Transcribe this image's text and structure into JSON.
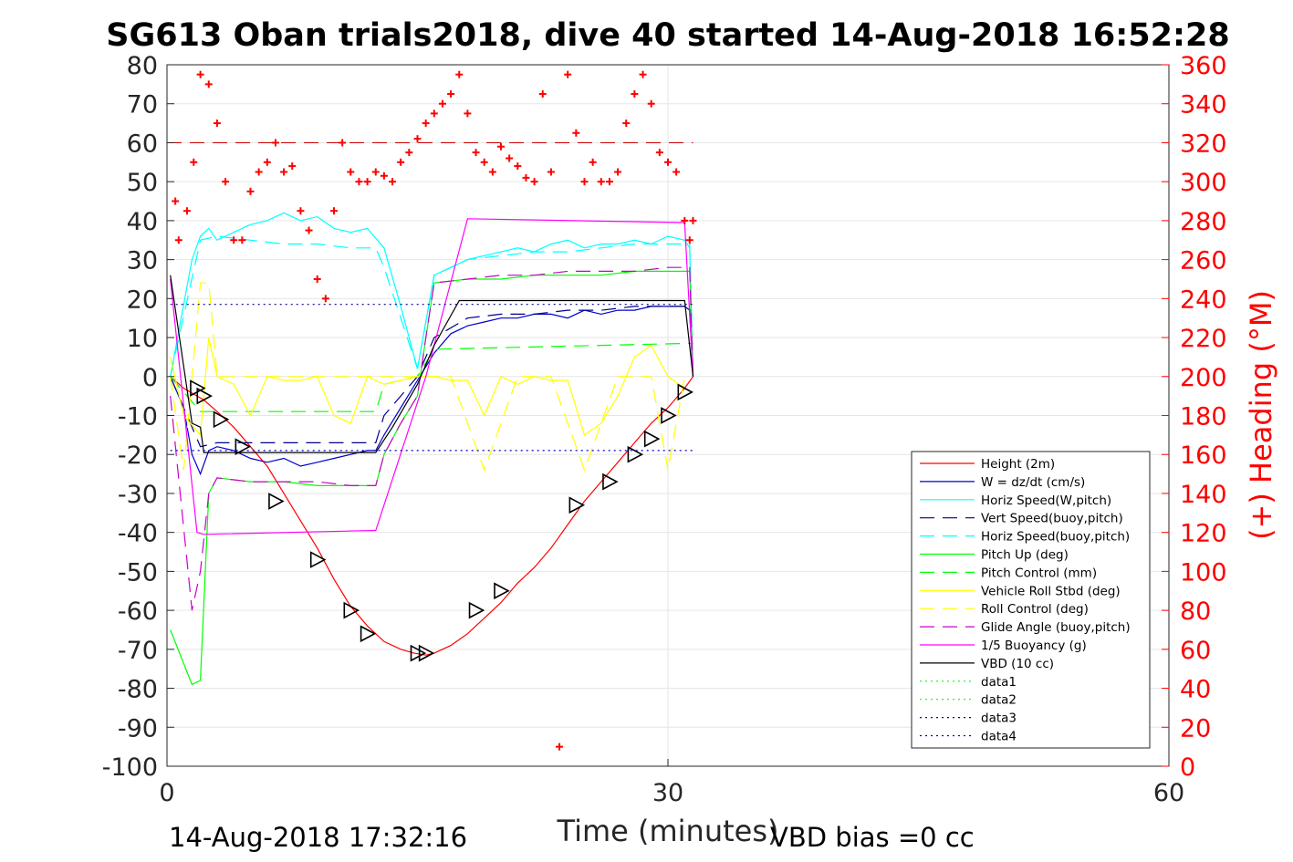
{
  "title": "SG613 Oban trials2018, dive 40 started 14-Aug-2018 16:52:28",
  "footer_left": "14-Aug-2018 17:32:16",
  "footer_right": "VBD bias =0 cc",
  "chart_data": {
    "type": "line",
    "xlabel": "Time (minutes)",
    "ylabel": "",
    "ylabel_right": "(+) Heading (°M)",
    "xlim": [
      0,
      60
    ],
    "ylim": [
      -100,
      80
    ],
    "ylim_right": [
      0,
      360
    ],
    "xticks": [
      0,
      30,
      60
    ],
    "yticks": [
      -100,
      -90,
      -80,
      -70,
      -60,
      -50,
      -40,
      -30,
      -20,
      -10,
      0,
      10,
      20,
      30,
      40,
      50,
      60,
      70,
      80
    ],
    "yticks_right": [
      0,
      20,
      40,
      60,
      80,
      100,
      120,
      140,
      160,
      180,
      200,
      220,
      240,
      260,
      280,
      300,
      320,
      340,
      360
    ],
    "grid": true,
    "legend_position": "lower-right",
    "series": [
      {
        "name": "Height (2m)",
        "color": "#ff0000",
        "style": "solid",
        "x": [
          0.2,
          1.0,
          1.8,
          2.2,
          3,
          4,
          5,
          6,
          7,
          8,
          9,
          10,
          11,
          12,
          13,
          14,
          14.8,
          15.5,
          16,
          17,
          18,
          19,
          20,
          21,
          22,
          23,
          24,
          25,
          26,
          27,
          28,
          29,
          30,
          31,
          31.5
        ],
        "y": [
          0,
          -3,
          -5,
          -6,
          -9,
          -13,
          -18,
          -23,
          -30,
          -37,
          -44,
          -52,
          -59,
          -64,
          -68,
          -70,
          -71,
          -71.5,
          -71,
          -69,
          -66,
          -62,
          -58,
          -53,
          -49,
          -44,
          -38,
          -32,
          -27,
          -22,
          -17,
          -12,
          -8,
          -3,
          0
        ]
      },
      {
        "name": "W = dz/dt (cm/s)",
        "color": "#0000cd",
        "style": "solid",
        "x": [
          0.2,
          1.0,
          1.5,
          2.0,
          2.5,
          3,
          4,
          5,
          6,
          7,
          8,
          9,
          10,
          11,
          12,
          12.5,
          13,
          14,
          15,
          16,
          17,
          18,
          19,
          20,
          21,
          22,
          23,
          24,
          25,
          26,
          27,
          28,
          29,
          30,
          31,
          31.3,
          31.5
        ],
        "y": [
          0,
          -8,
          -20,
          -25,
          -19,
          -18,
          -19,
          -21,
          -22,
          -21,
          -23,
          -22,
          -21,
          -20,
          -19,
          -19,
          -15,
          -8,
          -1,
          6,
          11,
          13,
          14,
          15,
          15,
          16,
          16,
          15,
          17,
          16,
          17,
          17,
          18,
          18,
          18,
          17,
          0
        ]
      },
      {
        "name": "Horiz Speed(W,pitch)",
        "color": "#00ffff",
        "style": "solid",
        "x": [
          0.2,
          1.5,
          2,
          2.5,
          3,
          4,
          5,
          6,
          7,
          8,
          9,
          10,
          11,
          12,
          13,
          14,
          15,
          16,
          17,
          18,
          19,
          20,
          21,
          22,
          23,
          24,
          25,
          26,
          27,
          28,
          29,
          30,
          31,
          31.3,
          31.5
        ],
        "y": [
          0,
          30,
          36,
          38,
          35,
          37,
          39,
          40,
          42,
          40,
          41,
          38,
          37,
          38,
          33,
          18,
          2,
          26,
          28,
          30,
          31,
          32,
          33,
          32,
          34,
          35,
          33,
          34,
          34,
          35,
          34,
          36,
          35,
          33,
          0
        ]
      },
      {
        "name": "Vert Speed(buoy,pitch)",
        "color": "#00008b",
        "style": "dashed",
        "x": [
          0.2,
          2,
          3,
          5,
          7,
          9,
          11,
          12.5,
          13,
          14,
          15,
          16,
          18,
          20,
          22,
          24,
          26,
          28,
          30,
          31.3,
          31.5
        ],
        "y": [
          0,
          -18,
          -17,
          -17,
          -17,
          -17,
          -17,
          -17,
          -10,
          -5,
          0,
          10,
          15,
          16,
          16,
          17,
          17,
          18,
          18,
          18,
          0
        ]
      },
      {
        "name": "Horiz Speed(buoy,pitch)",
        "color": "#00ffff",
        "style": "dashed",
        "x": [
          0.2,
          2,
          3,
          5,
          7,
          9,
          11,
          12.5,
          13,
          14,
          15,
          16,
          18,
          20,
          22,
          24,
          26,
          28,
          30,
          31.3,
          31.5
        ],
        "y": [
          0,
          35,
          36,
          35,
          34,
          34,
          33,
          33,
          28,
          15,
          2,
          26,
          30,
          31,
          32,
          32,
          33,
          34,
          34,
          34,
          0
        ]
      },
      {
        "name": "Pitch Up (deg)",
        "color": "#00ff00",
        "style": "solid",
        "x": [
          0.2,
          1.5,
          2,
          2.5,
          3,
          5,
          7,
          9,
          11,
          12.5,
          13,
          14,
          15,
          15.5,
          16,
          18,
          20,
          22,
          24,
          26,
          28,
          30,
          31.3,
          31.5
        ],
        "y": [
          -65,
          -79,
          -78,
          -30,
          -26,
          -27,
          -27,
          -28,
          -28,
          -28,
          -20,
          -12,
          -5,
          10,
          24,
          25,
          25,
          26,
          26,
          26,
          27,
          27,
          27,
          0
        ]
      },
      {
        "name": "Pitch Control (mm)",
        "color": "#00ff00",
        "style": "dashed",
        "x": [
          0.2,
          2,
          12.5,
          13,
          15,
          16,
          31,
          31.5
        ],
        "y": [
          0,
          -9,
          -9,
          -2,
          0,
          7,
          8.5,
          8.5
        ]
      },
      {
        "name": "Vehicle Roll Stbd (deg)",
        "color": "#ffff00",
        "style": "solid",
        "x": [
          0.2,
          1,
          2,
          2.5,
          3,
          4,
          5,
          6,
          7,
          8,
          9,
          10,
          11,
          12,
          13,
          14,
          15,
          16,
          17,
          18,
          19,
          20,
          21,
          22,
          23,
          24,
          25,
          26,
          27,
          28,
          29,
          30,
          31
        ],
        "y": [
          5,
          -10,
          -15,
          10,
          0,
          -2,
          -10,
          0,
          -1,
          -1,
          0,
          -10,
          -12,
          0,
          -2,
          -1,
          0,
          0,
          -1,
          -1,
          -10,
          0,
          -2,
          0,
          -1,
          -1,
          -15,
          -12,
          -5,
          5,
          8,
          0,
          -3
        ]
      },
      {
        "name": "Roll Control (deg)",
        "color": "#ffff00",
        "style": "dashed",
        "x": [
          0.2,
          1,
          2,
          2.5,
          3,
          5,
          7,
          9,
          11,
          13,
          15,
          17,
          19,
          21,
          23,
          25,
          27,
          29,
          30,
          31
        ],
        "y": [
          0,
          -24,
          24,
          24,
          0,
          0,
          0,
          0,
          0,
          0,
          0,
          0,
          -24,
          0,
          0,
          -24,
          0,
          0,
          -24,
          0
        ]
      },
      {
        "name": "Glide Angle (buoy,pitch)",
        "color": "#cc00cc",
        "style": "dashed",
        "x": [
          0.2,
          1.5,
          2,
          2.5,
          3,
          5,
          7,
          9,
          11,
          12.5,
          13,
          14,
          15,
          15.5,
          16,
          18,
          20,
          22,
          24,
          26,
          28,
          30,
          31.3,
          31.5
        ],
        "y": [
          -5,
          -60,
          -50,
          -30,
          -26,
          -27,
          -27,
          -27,
          -28,
          -28,
          -20,
          -12,
          -5,
          10,
          24,
          25,
          26,
          26,
          27,
          27,
          27,
          28,
          28,
          0
        ]
      },
      {
        "name": "1/5 Buoyancy (g)",
        "color": "#ff00ff",
        "style": "solid",
        "x": [
          0.2,
          1.8,
          2.2,
          12.5,
          15.5,
          18,
          31,
          31.5
        ],
        "y": [
          25,
          -40,
          -40.5,
          -39.5,
          0,
          40.5,
          39.5,
          0
        ]
      },
      {
        "name": "VBD (10 cc)",
        "color": "#000000",
        "style": "solid",
        "x": [
          0.2,
          1.5,
          2,
          2.2,
          12.5,
          13.5,
          15,
          16,
          17.5,
          31,
          31.5
        ],
        "y": [
          26,
          -12,
          -13,
          -19.5,
          -19.5,
          -13,
          -2,
          8,
          19.5,
          19.5,
          0
        ]
      },
      {
        "name": "data1",
        "color": "#00ff00",
        "style": "dotted",
        "x": [],
        "y": []
      },
      {
        "name": "data2",
        "color": "#00ff00",
        "style": "dotted",
        "x": [],
        "y": []
      },
      {
        "name": "data3",
        "color": "#00008b",
        "style": "dotted",
        "x": [
          0.2,
          31.5
        ],
        "y": [
          18.5,
          18.5
        ]
      },
      {
        "name": "data4",
        "color": "#0000cd",
        "style": "dotted",
        "x": [
          0.2,
          31.5
        ],
        "y": [
          -19,
          -19
        ]
      }
    ],
    "heading_series": {
      "color": "#ff0000",
      "marker": "+",
      "axis": "right",
      "x": [
        0.5,
        0.7,
        1.2,
        1.6,
        2.0,
        2.5,
        3,
        3.5,
        4,
        4.5,
        5,
        5.5,
        6,
        6.5,
        7,
        7.5,
        8,
        8.5,
        9,
        9.5,
        10,
        10.5,
        11,
        11.5,
        12,
        12.5,
        13,
        13.5,
        14,
        14.5,
        15,
        15.5,
        16,
        16.5,
        17,
        17.5,
        18,
        18.5,
        19,
        19.5,
        20,
        20.5,
        21,
        21.5,
        22,
        22.5,
        23,
        23.5,
        24,
        24.5,
        25,
        25.5,
        26,
        26.5,
        27,
        27.5,
        28,
        28.5,
        29,
        29.5,
        30,
        30.5,
        31,
        31.3,
        31.5
      ],
      "y": [
        290,
        270,
        285,
        310,
        355,
        350,
        330,
        300,
        270,
        270,
        295,
        305,
        310,
        320,
        305,
        308,
        285,
        275,
        250,
        240,
        285,
        320,
        305,
        300,
        300,
        305,
        303,
        300,
        310,
        315,
        322,
        330,
        335,
        340,
        345,
        355,
        335,
        315,
        310,
        305,
        318,
        312,
        308,
        302,
        300,
        345,
        305,
        10,
        355,
        325,
        300,
        310,
        300,
        300,
        305,
        330,
        345,
        355,
        340,
        315,
        310,
        305,
        280,
        270,
        280
      ]
    },
    "reference_lines": [
      {
        "color": "#cc0000",
        "style": "dashed",
        "axis": "right",
        "y": 320
      }
    ],
    "triangle_markers": {
      "color": "#000000",
      "x": [
        1.8,
        2.2,
        3.2,
        4.5,
        6.5,
        9,
        11,
        12,
        15,
        15.5,
        18.5,
        20,
        24.5,
        26.5,
        28,
        29,
        30,
        31
      ],
      "y": [
        -3,
        -5,
        -11,
        -18,
        -32,
        -47,
        -60,
        -66,
        -71,
        -71,
        -60,
        -55,
        -33,
        -27,
        -20,
        -16,
        -10,
        -4
      ]
    }
  }
}
